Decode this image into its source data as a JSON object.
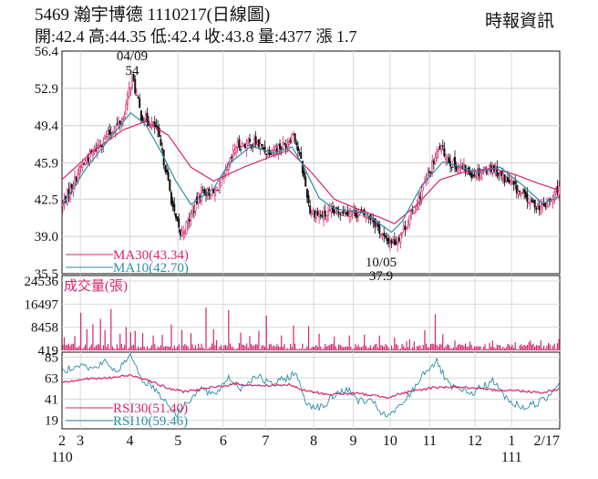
{
  "header": {
    "title": "5469 瀚宇博德 1110217(日線圖)",
    "ohlc": "開:42.4 高:44.35 低:42.4 收:43.8 量:4377 漲 1.7",
    "source": "時報資訊"
  },
  "chart_data": [
    {
      "type": "candlestick",
      "panel": "price",
      "y_ticks": [
        "56.4",
        "52.9",
        "49.4",
        "45.9",
        "42.5",
        "39.0",
        "35.5"
      ],
      "ylim": [
        35.5,
        56.4
      ],
      "annotations": [
        {
          "label_top": "04/09",
          "label_bottom": "54",
          "x_month": "4"
        },
        {
          "label_top": "10/05",
          "label_bottom": "37.9",
          "x_month": "10"
        }
      ],
      "legend": [
        {
          "name": "MA30(43.34)",
          "color": "#d6246e"
        },
        {
          "name": "MA10(42.70)",
          "color": "#2a8fa6"
        }
      ],
      "ma30_key": [
        [
          0,
          44.4
        ],
        [
          20,
          47.0
        ],
        [
          40,
          49.0
        ],
        [
          55,
          49.8
        ],
        [
          70,
          48.5
        ],
        [
          85,
          45.5
        ],
        [
          100,
          44.2
        ],
        [
          120,
          45.5
        ],
        [
          140,
          46.6
        ],
        [
          150,
          47.1
        ],
        [
          165,
          45.0
        ],
        [
          180,
          42.5
        ],
        [
          195,
          41.6
        ],
        [
          210,
          40.8
        ],
        [
          220,
          40.2
        ],
        [
          235,
          42.0
        ],
        [
          250,
          44.3
        ],
        [
          265,
          45.0
        ],
        [
          285,
          45.4
        ],
        [
          300,
          44.8
        ],
        [
          315,
          44.0
        ],
        [
          329,
          43.34
        ]
      ],
      "ma10_key": [
        [
          0,
          42.0
        ],
        [
          15,
          45.3
        ],
        [
          30,
          48.0
        ],
        [
          45,
          50.6
        ],
        [
          55,
          49.5
        ],
        [
          65,
          47.0
        ],
        [
          75,
          44.2
        ],
        [
          85,
          42.0
        ],
        [
          100,
          43.5
        ],
        [
          110,
          45.8
        ],
        [
          125,
          47.5
        ],
        [
          140,
          46.8
        ],
        [
          152,
          47.4
        ],
        [
          160,
          45.5
        ],
        [
          170,
          42.6
        ],
        [
          180,
          41.6
        ],
        [
          200,
          41.2
        ],
        [
          218,
          39.4
        ],
        [
          225,
          40.4
        ],
        [
          238,
          43.8
        ],
        [
          252,
          46.0
        ],
        [
          262,
          45.6
        ],
        [
          275,
          45.0
        ],
        [
          290,
          45.5
        ],
        [
          305,
          43.8
        ],
        [
          318,
          42.1
        ],
        [
          329,
          42.7
        ]
      ],
      "close_key": [
        [
          0,
          42.0
        ],
        [
          12,
          45.5
        ],
        [
          25,
          47.8
        ],
        [
          40,
          50.0
        ],
        [
          46,
          54.0
        ],
        [
          52,
          50.3
        ],
        [
          62,
          49.2
        ],
        [
          68,
          45.5
        ],
        [
          74,
          41.0
        ],
        [
          78,
          39.2
        ],
        [
          82,
          40.0
        ],
        [
          92,
          43.3
        ],
        [
          100,
          43.0
        ],
        [
          108,
          44.8
        ],
        [
          115,
          47.5
        ],
        [
          128,
          47.8
        ],
        [
          135,
          47.0
        ],
        [
          148,
          47.6
        ],
        [
          153,
          48.8
        ],
        [
          158,
          46.0
        ],
        [
          164,
          41.4
        ],
        [
          172,
          40.9
        ],
        [
          185,
          41.5
        ],
        [
          195,
          41.2
        ],
        [
          205,
          40.8
        ],
        [
          214,
          38.6
        ],
        [
          221,
          38.5
        ],
        [
          232,
          41.2
        ],
        [
          242,
          44.6
        ],
        [
          250,
          47.4
        ],
        [
          258,
          45.8
        ],
        [
          272,
          44.9
        ],
        [
          285,
          45.5
        ],
        [
          298,
          43.8
        ],
        [
          310,
          42.2
        ],
        [
          318,
          41.7
        ],
        [
          324,
          42.4
        ],
        [
          329,
          43.8
        ]
      ]
    },
    {
      "type": "bar",
      "panel": "volume",
      "title": "成交量(張)",
      "y_ticks": [
        "24536",
        "16497",
        "8458",
        "419"
      ],
      "ylim": [
        419,
        24536
      ],
      "spikes": [
        [
          8,
          5400
        ],
        [
          12,
          13500
        ],
        [
          16,
          7800
        ],
        [
          20,
          9500
        ],
        [
          25,
          11400
        ],
        [
          28,
          7400
        ],
        [
          32,
          14800
        ],
        [
          38,
          6200
        ],
        [
          42,
          8500
        ],
        [
          45,
          6700
        ],
        [
          48,
          7200
        ],
        [
          53,
          6400
        ],
        [
          60,
          5600
        ],
        [
          66,
          5800
        ],
        [
          72,
          9400
        ],
        [
          79,
          7500
        ],
        [
          85,
          6400
        ],
        [
          95,
          15300
        ],
        [
          100,
          7800
        ],
        [
          110,
          14400
        ],
        [
          118,
          6600
        ],
        [
          124,
          5400
        ],
        [
          130,
          7200
        ],
        [
          135,
          12500
        ],
        [
          145,
          5600
        ],
        [
          153,
          9000
        ],
        [
          163,
          8800
        ],
        [
          170,
          6200
        ],
        [
          180,
          5200
        ],
        [
          190,
          5600
        ],
        [
          200,
          5900
        ],
        [
          210,
          5600
        ],
        [
          220,
          4900
        ],
        [
          230,
          4300
        ],
        [
          240,
          7400
        ],
        [
          247,
          13000
        ],
        [
          252,
          6000
        ],
        [
          260,
          3900
        ],
        [
          270,
          3500
        ],
        [
          285,
          3800
        ],
        [
          300,
          3300
        ],
        [
          310,
          3900
        ],
        [
          329,
          4377
        ]
      ]
    },
    {
      "type": "line",
      "panel": "rsi",
      "y_ticks": [
        "85",
        "63",
        "41",
        "19"
      ],
      "ylim": [
        19,
        85
      ],
      "series": [
        {
          "name": "RSI30(51.40)",
          "color": "#d6246e",
          "key": [
            [
              0,
              59
            ],
            [
              15,
              62
            ],
            [
              30,
              63
            ],
            [
              45,
              66
            ],
            [
              55,
              62
            ],
            [
              70,
              52
            ],
            [
              80,
              49
            ],
            [
              95,
              52
            ],
            [
              115,
              57
            ],
            [
              130,
              55
            ],
            [
              150,
              56
            ],
            [
              160,
              50
            ],
            [
              175,
              46
            ],
            [
              195,
              47
            ],
            [
              215,
              43
            ],
            [
              225,
              47
            ],
            [
              245,
              53
            ],
            [
              260,
              54
            ],
            [
              280,
              51
            ],
            [
              300,
              50
            ],
            [
              318,
              48
            ],
            [
              329,
              51.4
            ]
          ]
        },
        {
          "name": "RSI10(59.46)",
          "color": "#2a8fa6",
          "key": [
            [
              0,
              70
            ],
            [
              10,
              78
            ],
            [
              20,
              72
            ],
            [
              28,
              80
            ],
            [
              35,
              70
            ],
            [
              46,
              86
            ],
            [
              52,
              62
            ],
            [
              60,
              54
            ],
            [
              70,
              35
            ],
            [
              76,
              24
            ],
            [
              82,
              38
            ],
            [
              92,
              52
            ],
            [
              100,
              44
            ],
            [
              110,
              64
            ],
            [
              118,
              52
            ],
            [
              128,
              66
            ],
            [
              138,
              56
            ],
            [
              150,
              64
            ],
            [
              154,
              69
            ],
            [
              162,
              36
            ],
            [
              172,
              32
            ],
            [
              180,
              45
            ],
            [
              188,
              52
            ],
            [
              196,
              40
            ],
            [
              206,
              37
            ],
            [
              214,
              22
            ],
            [
              222,
              30
            ],
            [
              232,
              50
            ],
            [
              240,
              70
            ],
            [
              248,
              80
            ],
            [
              256,
              55
            ],
            [
              270,
              46
            ],
            [
              285,
              60
            ],
            [
              296,
              38
            ],
            [
              306,
              32
            ],
            [
              316,
              38
            ],
            [
              322,
              44
            ],
            [
              329,
              59.46
            ]
          ]
        }
      ]
    }
  ],
  "x_axis": {
    "month_ticks": [
      {
        "label": "2",
        "day": 0
      },
      {
        "label": "3",
        "day": 13
      },
      {
        "label": "4",
        "day": 48
      },
      {
        "label": "5",
        "day": 82
      },
      {
        "label": "6",
        "day": 114
      },
      {
        "label": "7",
        "day": 144
      },
      {
        "label": "8",
        "day": 178
      },
      {
        "label": "9",
        "day": 206
      },
      {
        "label": "10",
        "day": 232
      },
      {
        "label": "11",
        "day": 260
      },
      {
        "label": "12",
        "day": 292
      },
      {
        "label": "1",
        "day": 318
      },
      {
        "label": "2/17",
        "day": 352
      }
    ],
    "year_labels": [
      {
        "label": "110",
        "day": 0
      },
      {
        "label": "111",
        "day": 318
      }
    ]
  }
}
